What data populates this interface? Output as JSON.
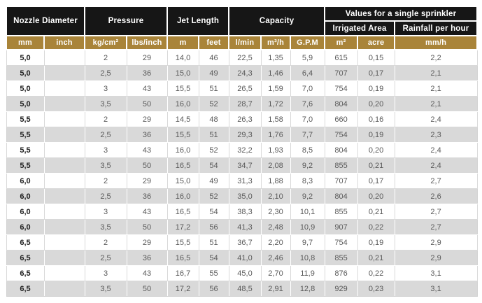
{
  "colors": {
    "header_bg": "#161616",
    "accent_gold": "#a98439",
    "row_bg": "#ffffff",
    "row_alt_bg": "#d9d9d9",
    "header_text": "#ffffff",
    "cell_text": "#595959",
    "first_col_text": "#1f1f1f"
  },
  "chart_data": {
    "type": "table",
    "column_groups": [
      {
        "label": "Nozzle Diameter",
        "span": 2
      },
      {
        "label": "Pressure",
        "span": 2
      },
      {
        "label": "Jet Length",
        "span": 2
      },
      {
        "label": "Capacity",
        "span": 3
      },
      {
        "label": "Values for a single sprinkler",
        "span": 3,
        "subgroups": [
          {
            "label": "Irrigated Area",
            "span": 2
          },
          {
            "label": "Rainfall per hour",
            "span": 1
          }
        ]
      }
    ],
    "columns": [
      "mm",
      "inch",
      "kg/cm²",
      "lbs/inch",
      "m",
      "feet",
      "l/min",
      "m³/h",
      "G.P.M",
      "m²",
      "acre",
      "mm/h"
    ],
    "rows": [
      [
        "5,0",
        "",
        "2",
        "29",
        "14,0",
        "46",
        "22,5",
        "1,35",
        "5,9",
        "615",
        "0,15",
        "2,2"
      ],
      [
        "5,0",
        "",
        "2,5",
        "36",
        "15,0",
        "49",
        "24,3",
        "1,46",
        "6,4",
        "707",
        "0,17",
        "2,1"
      ],
      [
        "5,0",
        "",
        "3",
        "43",
        "15,5",
        "51",
        "26,5",
        "1,59",
        "7,0",
        "754",
        "0,19",
        "2,1"
      ],
      [
        "5,0",
        "",
        "3,5",
        "50",
        "16,0",
        "52",
        "28,7",
        "1,72",
        "7,6",
        "804",
        "0,20",
        "2,1"
      ],
      [
        "5,5",
        "",
        "2",
        "29",
        "14,5",
        "48",
        "26,3",
        "1,58",
        "7,0",
        "660",
        "0,16",
        "2,4"
      ],
      [
        "5,5",
        "",
        "2,5",
        "36",
        "15,5",
        "51",
        "29,3",
        "1,76",
        "7,7",
        "754",
        "0,19",
        "2,3"
      ],
      [
        "5,5",
        "",
        "3",
        "43",
        "16,0",
        "52",
        "32,2",
        "1,93",
        "8,5",
        "804",
        "0,20",
        "2,4"
      ],
      [
        "5,5",
        "",
        "3,5",
        "50",
        "16,5",
        "54",
        "34,7",
        "2,08",
        "9,2",
        "855",
        "0,21",
        "2,4"
      ],
      [
        "6,0",
        "",
        "2",
        "29",
        "15,0",
        "49",
        "31,3",
        "1,88",
        "8,3",
        "707",
        "0,17",
        "2,7"
      ],
      [
        "6,0",
        "",
        "2,5",
        "36",
        "16,0",
        "52",
        "35,0",
        "2,10",
        "9,2",
        "804",
        "0,20",
        "2,6"
      ],
      [
        "6,0",
        "",
        "3",
        "43",
        "16,5",
        "54",
        "38,3",
        "2,30",
        "10,1",
        "855",
        "0,21",
        "2,7"
      ],
      [
        "6,0",
        "",
        "3,5",
        "50",
        "17,2",
        "56",
        "41,3",
        "2,48",
        "10,9",
        "907",
        "0,22",
        "2,7"
      ],
      [
        "6,5",
        "",
        "2",
        "29",
        "15,5",
        "51",
        "36,7",
        "2,20",
        "9,7",
        "754",
        "0,19",
        "2,9"
      ],
      [
        "6,5",
        "",
        "2,5",
        "36",
        "16,5",
        "54",
        "41,0",
        "2,46",
        "10,8",
        "855",
        "0,21",
        "2,9"
      ],
      [
        "6,5",
        "",
        "3",
        "43",
        "16,7",
        "55",
        "45,0",
        "2,70",
        "11,9",
        "876",
        "0,22",
        "3,1"
      ],
      [
        "6,5",
        "",
        "3,5",
        "50",
        "17,2",
        "56",
        "48,5",
        "2,91",
        "12,8",
        "929",
        "0,23",
        "3,1"
      ]
    ]
  }
}
